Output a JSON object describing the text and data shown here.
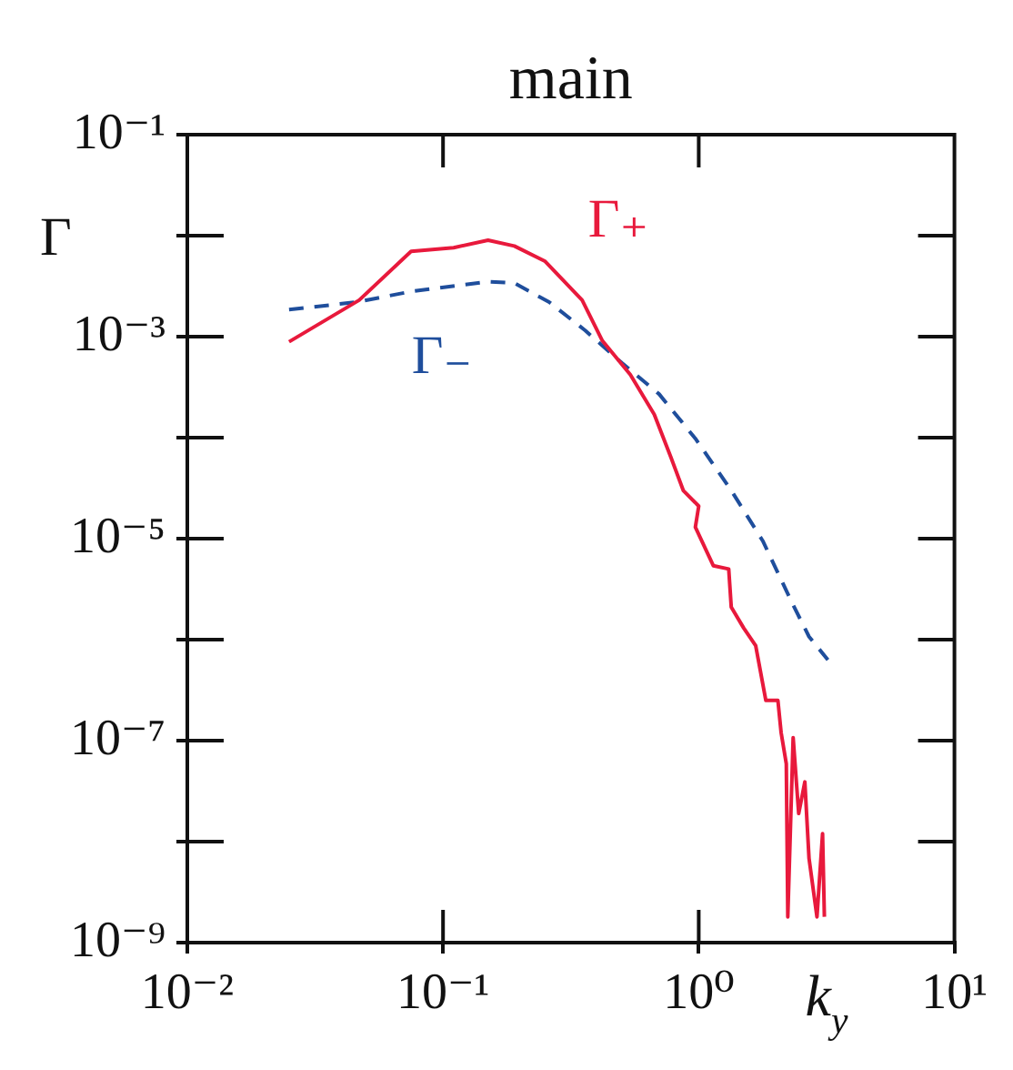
{
  "chart_data": {
    "type": "line",
    "title": "main",
    "xlabel": "k$_{y}$",
    "ylabel": "Γ",
    "log": "xy",
    "grid": false,
    "legend": false,
    "marker": "none",
    "xlim": [
      0.01,
      10
    ],
    "xticks": [
      {
        "value": 0.01,
        "label": "10⁻²"
      },
      {
        "value": 0.1,
        "label": "10⁻¹"
      },
      {
        "value": 1,
        "label": "10⁰"
      },
      {
        "value": 10,
        "label": "10¹"
      }
    ],
    "ylim": [
      1e-09,
      0.1
    ],
    "yticks": [
      {
        "value": 1e-09,
        "label": "10⁻⁹"
      },
      {
        "value": 1e-08,
        "label": null
      },
      {
        "value": 1e-07,
        "label": "10⁻⁷"
      },
      {
        "value": 1e-06,
        "label": null
      },
      {
        "value": 1e-05,
        "label": "10⁻⁵"
      },
      {
        "value": 0.0001,
        "label": null
      },
      {
        "value": 0.001,
        "label": "10⁻³"
      },
      {
        "value": 0.01,
        "label": null
      },
      {
        "value": 0.1,
        "label": "10⁻¹"
      }
    ],
    "series": [
      {
        "name": "Γ₊",
        "color": "#e8193c",
        "line_style": "solid",
        "x": [
          0.025,
          0.047,
          0.075,
          0.11,
          0.15,
          0.19,
          0.25,
          0.35,
          0.42,
          0.54,
          0.67,
          0.78,
          0.87,
          1.0,
          0.97,
          1.14,
          1.31,
          1.34,
          1.5,
          1.67,
          1.83,
          2.04,
          2.1,
          2.2,
          2.23,
          2.34,
          2.46,
          2.6,
          2.7,
          2.9,
          3.05,
          3.1
        ],
        "values": [
          0.00089,
          0.0023,
          0.007,
          0.0076,
          0.009,
          0.0079,
          0.0056,
          0.0023,
          0.00091,
          0.00042,
          0.00017,
          6.3e-05,
          3e-05,
          2.1e-05,
          1.3e-05,
          5.4e-06,
          5e-06,
          2.1e-06,
          1.3e-06,
          8.7e-07,
          2.5e-07,
          2.5e-07,
          1.2e-07,
          5.9e-08,
          1.8e-09,
          1.07e-07,
          1.9e-08,
          3.9e-08,
          6.8e-09,
          1.8e-09,
          1.2e-08,
          1.8e-09
        ]
      },
      {
        "name": "Γ₋",
        "color": "#1f4e9c",
        "line_style": "dashed",
        "x": [
          0.025,
          0.046,
          0.075,
          0.15,
          0.19,
          0.26,
          0.36,
          0.5,
          0.7,
          0.97,
          1.34,
          1.78,
          2.34,
          2.7,
          3.2
        ],
        "values": [
          0.00185,
          0.0022,
          0.0028,
          0.0035,
          0.0034,
          0.0022,
          0.00115,
          0.00055,
          0.00027,
          9.8e-05,
          3e-05,
          9.5e-06,
          2.2e-06,
          1.07e-06,
          6.3e-07
        ]
      }
    ]
  }
}
